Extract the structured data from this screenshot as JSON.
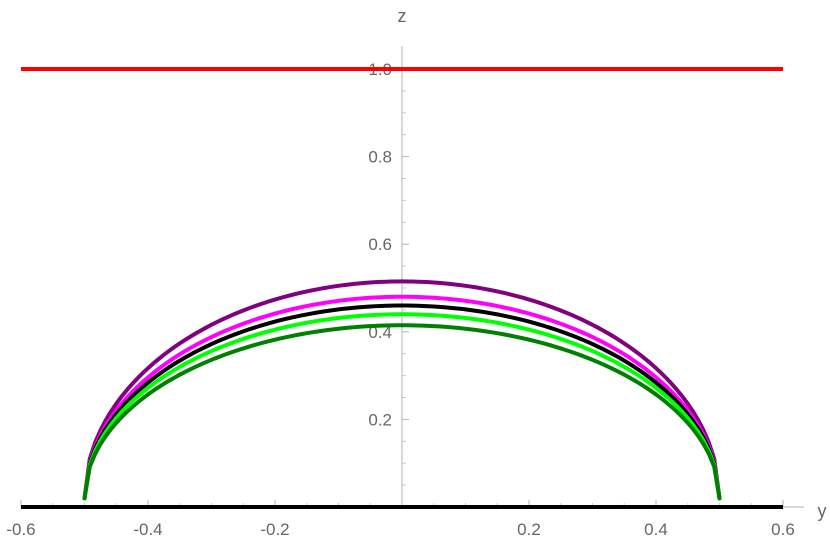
{
  "chart_data": {
    "type": "line",
    "xlabel": "y",
    "ylabel": "z",
    "xlim": [
      -0.6,
      0.6
    ],
    "ylim": [
      0.0,
      1.04
    ],
    "xticks": [
      -0.6,
      -0.4,
      -0.2,
      0.2,
      0.4,
      0.6
    ],
    "xtick_labels": [
      "-0.6",
      "-0.4",
      "-0.2",
      "0.2",
      "0.4",
      "0.6"
    ],
    "yticks": [
      0.2,
      0.4,
      0.6,
      0.8,
      1.0
    ],
    "ytick_labels": [
      "0.2",
      "0.4",
      "0.6",
      "0.8",
      "1.0"
    ],
    "grid": false,
    "series": [
      {
        "color": "#ff0000",
        "kind": "hline",
        "y": 1.0,
        "x_range": [
          -0.6,
          0.6
        ]
      },
      {
        "color": "#000000",
        "kind": "hline",
        "y": 0.0,
        "x_range": [
          -0.6,
          0.6
        ]
      },
      {
        "color": "#800080",
        "kind": "arc",
        "x_range": [
          -0.5,
          0.5
        ],
        "peak": 0.515
      },
      {
        "color": "#ff00ff",
        "kind": "arc",
        "x_range": [
          -0.5,
          0.5
        ],
        "peak": 0.48
      },
      {
        "color": "#000000",
        "kind": "arc",
        "x_range": [
          -0.5,
          0.5
        ],
        "peak": 0.46
      },
      {
        "color": "#00ff00",
        "kind": "arc",
        "x_range": [
          -0.5,
          0.5
        ],
        "peak": 0.44
      },
      {
        "color": "#008000",
        "kind": "arc",
        "x_range": [
          -0.5,
          0.5
        ],
        "peak": 0.415
      }
    ]
  }
}
